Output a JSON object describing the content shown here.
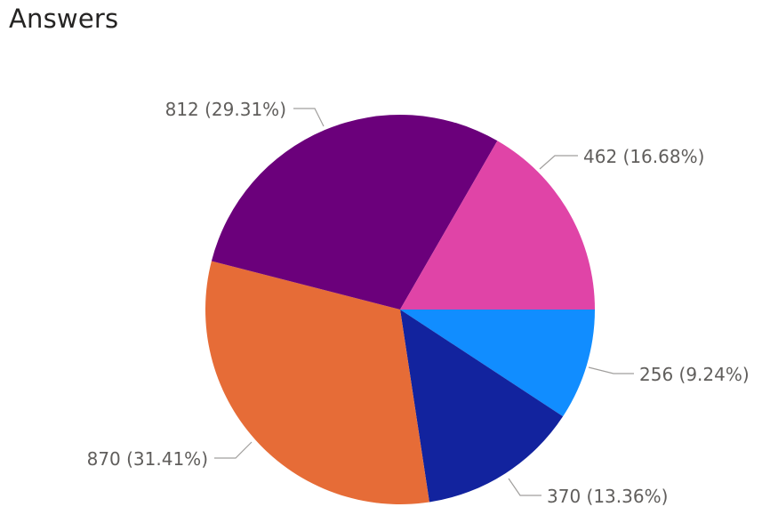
{
  "chart_data": {
    "type": "pie",
    "title": "Answers",
    "slices": [
      {
        "value": 256,
        "percent_label": "256 (9.24%)",
        "color": "#118dff"
      },
      {
        "value": 370,
        "percent_label": "370 (13.36%)",
        "color": "#12239e"
      },
      {
        "value": 870,
        "percent_label": "870 (31.41%)",
        "color": "#e66c37"
      },
      {
        "value": 812,
        "percent_label": "812 (29.31%)",
        "color": "#6b007b"
      },
      {
        "value": 462,
        "percent_label": "462 (16.68%)",
        "color": "#e044a7"
      }
    ],
    "legend": "none",
    "data_labels": "outside"
  }
}
